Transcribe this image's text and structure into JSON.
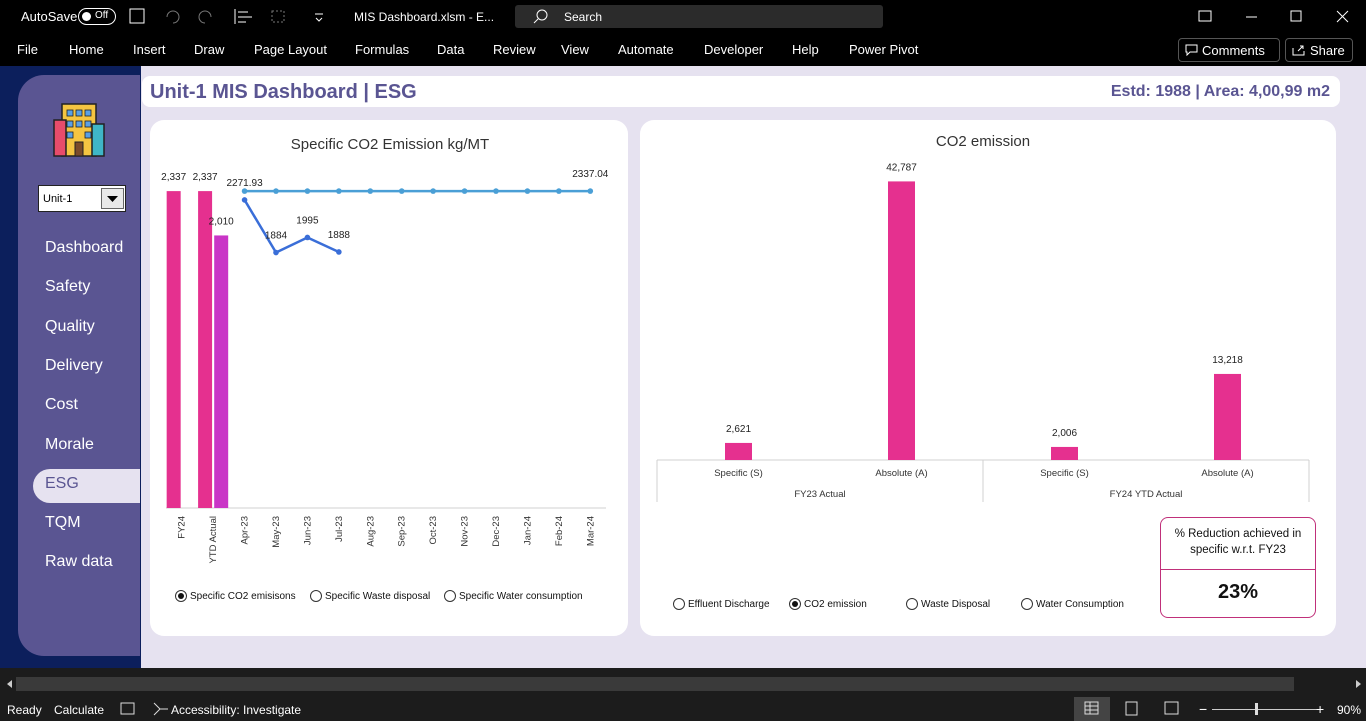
{
  "titlebar": {
    "autosave": "AutoSave",
    "toggle": "Off",
    "filename": "MIS Dashboard.xlsm  -  E...",
    "search": "Search"
  },
  "menu": [
    "File",
    "Home",
    "Insert",
    "Draw",
    "Page Layout",
    "Formulas",
    "Data",
    "Review",
    "View",
    "Automate",
    "Developer",
    "Help",
    "Power Pivot"
  ],
  "comments": "Comments",
  "share": "Share",
  "sidebar": {
    "dropdown": "Unit-1",
    "items": [
      "Dashboard",
      "Safety",
      "Quality",
      "Delivery",
      "Cost",
      "Morale",
      "ESG",
      "TQM",
      "Raw data"
    ],
    "active": 6
  },
  "header": {
    "title": "Unit-1 MIS Dashboard | ESG",
    "info": "Estd: 1988 | Area: 4,00,99 m2"
  },
  "chart_data": [
    {
      "type": "bar",
      "title": "Specific CO2 Emission kg/MT",
      "categories": [
        "FY24",
        "YTD Actual",
        "Apr-23",
        "May-23",
        "Jun-23",
        "Jul-23",
        "Aug-23",
        "Sep-23",
        "Oct-23",
        "Nov-23",
        "Dec-23",
        "Jan-24",
        "Feb-24",
        "Mar-24"
      ],
      "ylim": [
        0,
        2500
      ],
      "series": [
        {
          "type": "bar",
          "color": "#e5308f",
          "values": [
            2337,
            2337,
            null,
            null,
            null,
            null,
            null,
            null,
            null,
            null,
            null,
            null,
            null,
            null
          ],
          "value_labels": [
            "2,337",
            "2,337",
            null,
            null,
            null,
            null,
            null,
            null,
            null,
            null,
            null,
            null,
            null,
            null
          ]
        },
        {
          "type": "bar",
          "color": "#c935c6",
          "values": [
            null,
            2010,
            null,
            null,
            null,
            null,
            null,
            null,
            null,
            null,
            null,
            null,
            null,
            null
          ],
          "value_labels": [
            null,
            "2,010",
            null,
            null,
            null,
            null,
            null,
            null,
            null,
            null,
            null,
            null,
            null,
            null
          ]
        },
        {
          "type": "line",
          "color": "#4a9fd6",
          "values": [
            null,
            null,
            2337.04,
            2337.04,
            2337.04,
            2337.04,
            2337.04,
            2337.04,
            2337.04,
            2337.04,
            2337.04,
            2337.04,
            2337.04,
            2337.04
          ],
          "value_labels": [
            null,
            null,
            null,
            null,
            null,
            null,
            null,
            null,
            null,
            null,
            null,
            null,
            null,
            "2337.04"
          ]
        },
        {
          "type": "line",
          "color": "#3a6ed8",
          "values": [
            null,
            null,
            2271.93,
            1884,
            1995,
            1888,
            null,
            null,
            null,
            null,
            null,
            null,
            null,
            null
          ],
          "value_labels": [
            null,
            null,
            "2271.93",
            "1884",
            "1995",
            "1888",
            null,
            null,
            null,
            null,
            null,
            null,
            null,
            null
          ]
        }
      ],
      "options": [
        "Specific CO2 emisisons",
        "Specific Waste disposal",
        "Specific Water consumption"
      ],
      "selected": 0
    },
    {
      "type": "bar",
      "title": "CO2 emission",
      "categories": [
        "Specific (S)",
        "Absolute (A)",
        "Specific (S)",
        "Absolute (A)"
      ],
      "groups": [
        "FY23 Actual",
        "FY24 YTD Actual"
      ],
      "ylim": [
        0,
        45000
      ],
      "series": [
        {
          "type": "bar",
          "color": "#e5308f",
          "values": [
            2621,
            42787,
            2006,
            13218
          ],
          "value_labels": [
            "2,621",
            "42,787",
            "2,006",
            "13,218"
          ]
        }
      ],
      "options": [
        "Effluent Discharge",
        "CO2 emission",
        "Waste Disposal",
        "Water Consumption"
      ],
      "selected": 1
    }
  ],
  "reduction": {
    "label": "% Reduction achieved in specific w.r.t. FY23",
    "value": "23%"
  },
  "status": {
    "ready": "Ready",
    "calculate": "Calculate",
    "accessibility": "Accessibility: Investigate",
    "zoom": "90%"
  }
}
